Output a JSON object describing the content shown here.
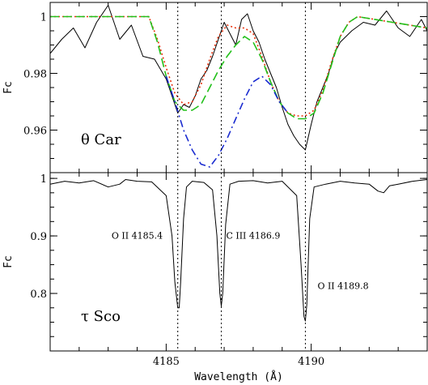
{
  "chart_data": [
    {
      "panel": "top",
      "type": "line",
      "label": "θ Car",
      "ylabel": "Fc",
      "xlim": [
        4181.0,
        4194.0
      ],
      "ylim": [
        0.945,
        1.005
      ],
      "yticks": [
        0.96,
        0.98,
        1
      ],
      "ytick_labels": [
        "0.96",
        "0.98",
        "1"
      ],
      "series": [
        {
          "style": "observed",
          "color": "#000000",
          "dash": "solid",
          "x": [
            4181.0,
            4181.4,
            4181.8,
            4182.2,
            4182.6,
            4183.0,
            4183.4,
            4183.8,
            4184.2,
            4184.6,
            4185.0,
            4185.2,
            4185.4,
            4185.6,
            4185.8,
            4186.0,
            4186.2,
            4186.4,
            4186.6,
            4186.8,
            4187.0,
            4187.2,
            4187.4,
            4187.6,
            4187.8,
            4188.0,
            4188.2,
            4188.4,
            4188.6,
            4188.8,
            4189.0,
            4189.2,
            4189.4,
            4189.6,
            4189.8,
            4190.0,
            4190.2,
            4190.4,
            4190.6,
            4190.8,
            4191.0,
            4191.4,
            4191.8,
            4192.2,
            4192.6,
            4193.0,
            4193.4,
            4193.8,
            4194.0
          ],
          "y": [
            0.987,
            0.992,
            0.996,
            0.989,
            0.998,
            1.004,
            0.992,
            0.997,
            0.986,
            0.985,
            0.978,
            0.972,
            0.966,
            0.969,
            0.968,
            0.972,
            0.978,
            0.981,
            0.986,
            0.992,
            0.998,
            0.994,
            0.99,
            0.999,
            1.001,
            0.995,
            0.991,
            0.985,
            0.98,
            0.975,
            0.968,
            0.962,
            0.958,
            0.955,
            0.953,
            0.962,
            0.97,
            0.975,
            0.98,
            0.987,
            0.991,
            0.995,
            0.998,
            0.997,
            1.002,
            0.996,
            0.993,
            0.999,
            0.995
          ]
        },
        {
          "style": "model",
          "color": "#e8300a",
          "dash": "dotted",
          "x": [
            4181.0,
            4184.4,
            4184.7,
            4185.0,
            4185.3,
            4185.6,
            4185.9,
            4186.2,
            4186.5,
            4186.8,
            4187.1,
            4187.4,
            4187.7,
            4188.0,
            4188.3,
            4188.6,
            4188.9,
            4189.2,
            4189.5,
            4189.8,
            4190.1,
            4190.4,
            4190.7,
            4191.0,
            4191.3,
            4191.6,
            4194.0
          ],
          "y": [
            1.0,
            1.0,
            0.992,
            0.982,
            0.973,
            0.969,
            0.97,
            0.976,
            0.985,
            0.993,
            0.997,
            0.996,
            0.996,
            0.994,
            0.986,
            0.977,
            0.97,
            0.966,
            0.965,
            0.965,
            0.967,
            0.974,
            0.984,
            0.993,
            0.998,
            1.0,
            0.996
          ]
        },
        {
          "style": "model",
          "color": "#22c01a",
          "dash": "long-dash",
          "x": [
            4181.0,
            4184.4,
            4184.7,
            4185.0,
            4185.3,
            4185.6,
            4185.9,
            4186.2,
            4186.5,
            4186.8,
            4187.1,
            4187.4,
            4187.7,
            4188.0,
            4188.3,
            4188.6,
            4188.9,
            4189.2,
            4189.5,
            4189.8,
            4190.1,
            4190.4,
            4190.7,
            4191.0,
            4191.3,
            4191.6,
            4194.0
          ],
          "y": [
            1.0,
            1.0,
            0.991,
            0.979,
            0.97,
            0.967,
            0.967,
            0.969,
            0.975,
            0.981,
            0.986,
            0.99,
            0.993,
            0.991,
            0.985,
            0.977,
            0.97,
            0.966,
            0.964,
            0.964,
            0.966,
            0.973,
            0.983,
            0.993,
            0.998,
            1.0,
            0.996
          ]
        },
        {
          "style": "model",
          "color": "#1a2bd0",
          "dash": "dash-dot",
          "x": [
            4185.0,
            4185.3,
            4185.6,
            4185.9,
            4186.2,
            4186.5,
            4186.8,
            4187.1,
            4187.4,
            4187.7,
            4188.0,
            4188.3,
            4188.6,
            4188.9,
            4189.2
          ],
          "y": [
            0.979,
            0.97,
            0.96,
            0.953,
            0.948,
            0.947,
            0.951,
            0.957,
            0.964,
            0.971,
            0.977,
            0.979,
            0.976,
            0.97,
            0.966
          ]
        }
      ]
    },
    {
      "panel": "bottom",
      "type": "line",
      "label": "τ Sco",
      "xlabel": "Wavelength (Å)",
      "ylabel": "Fc",
      "xlim": [
        4181.0,
        4194.0
      ],
      "ylim": [
        0.7,
        1.01
      ],
      "xticks": [
        4185,
        4190
      ],
      "xtick_labels": [
        "4185",
        "4190"
      ],
      "yticks": [
        0.8,
        0.9,
        1
      ],
      "ytick_labels": [
        "0.8",
        "0.9",
        "1"
      ],
      "annotations": [
        {
          "text": "O II 4185.4",
          "x": 4184.0,
          "y": 0.895
        },
        {
          "text": "C III 4186.9",
          "x": 4188.0,
          "y": 0.895
        },
        {
          "text": "O II 4189.8",
          "x": 4191.1,
          "y": 0.808
        }
      ],
      "series": [
        {
          "style": "observed",
          "color": "#000000",
          "dash": "solid",
          "x": [
            4181.0,
            4181.5,
            4182.0,
            4182.5,
            4183.0,
            4183.4,
            4183.6,
            4184.0,
            4184.5,
            4185.0,
            4185.2,
            4185.3,
            4185.4,
            4185.45,
            4185.5,
            4185.6,
            4185.7,
            4185.9,
            4186.3,
            4186.6,
            4186.75,
            4186.85,
            4186.9,
            4186.95,
            4187.05,
            4187.2,
            4187.5,
            4188.0,
            4188.5,
            4189.0,
            4189.5,
            4189.65,
            4189.75,
            4189.8,
            4189.85,
            4189.95,
            4190.1,
            4190.5,
            4191.0,
            4191.5,
            4192.0,
            4192.3,
            4192.5,
            4192.7,
            4193.0,
            4193.5,
            4194.0
          ],
          "y": [
            0.99,
            0.995,
            0.992,
            0.996,
            0.985,
            0.99,
            0.998,
            0.995,
            0.994,
            0.97,
            0.9,
            0.82,
            0.775,
            0.775,
            0.82,
            0.93,
            0.985,
            0.995,
            0.993,
            0.98,
            0.9,
            0.8,
            0.778,
            0.8,
            0.92,
            0.99,
            0.995,
            0.996,
            0.992,
            0.995,
            0.97,
            0.85,
            0.76,
            0.752,
            0.78,
            0.93,
            0.985,
            0.99,
            0.995,
            0.992,
            0.99,
            0.978,
            0.975,
            0.987,
            0.99,
            0.995,
            0.998
          ]
        }
      ]
    }
  ],
  "vlines": [
    4185.4,
    4186.9,
    4189.8
  ]
}
